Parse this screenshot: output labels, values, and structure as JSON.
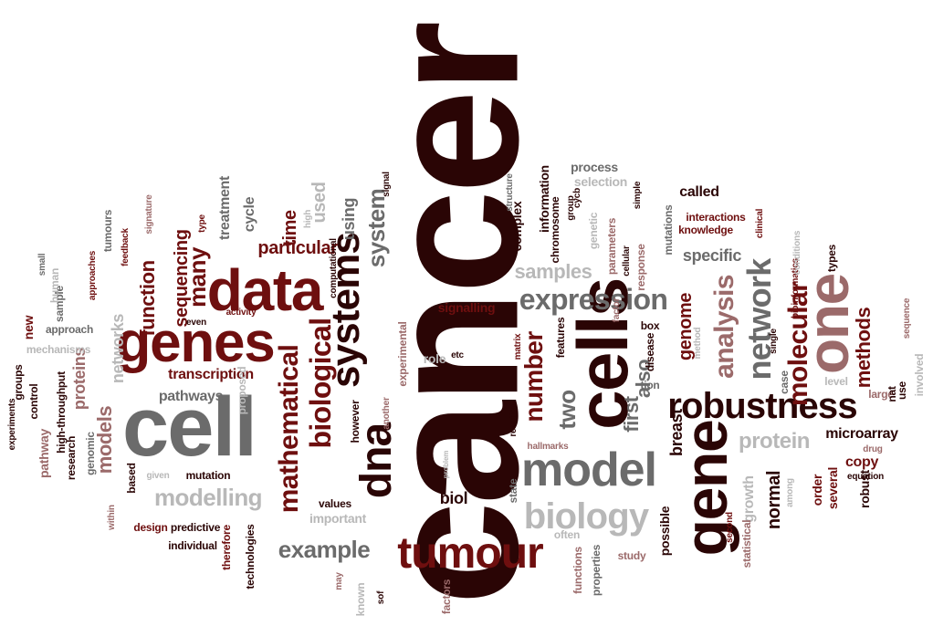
{
  "palette": {
    "darkest": "#2a0505",
    "dark_red": "#6e0f0f",
    "rose": "#9b6a6a",
    "grey": "#6b6b6b",
    "light_grey": "#b8b8b8"
  },
  "words": [
    {
      "text": "cancer",
      "color": "darkest"
    },
    {
      "text": "cell",
      "color": "grey"
    },
    {
      "text": "cells",
      "color": "darkest"
    },
    {
      "text": "data",
      "color": "dark_red"
    },
    {
      "text": "genes",
      "color": "dark_red"
    },
    {
      "text": "one",
      "color": "rose"
    },
    {
      "text": "gene",
      "color": "darkest"
    },
    {
      "text": "model",
      "color": "grey"
    },
    {
      "text": "tumour",
      "color": "dark_red"
    },
    {
      "text": "robustness",
      "color": "darkest"
    },
    {
      "text": "expression",
      "color": "grey"
    },
    {
      "text": "biology",
      "color": "light_grey"
    },
    {
      "text": "dna",
      "color": "darkest"
    },
    {
      "text": "systems",
      "color": "darkest"
    },
    {
      "text": "biological",
      "color": "dark_red"
    },
    {
      "text": "mathematical",
      "color": "dark_red"
    },
    {
      "text": "example",
      "color": "grey"
    },
    {
      "text": "network",
      "color": "grey"
    },
    {
      "text": "molecular",
      "color": "dark_red"
    },
    {
      "text": "analysis",
      "color": "rose"
    },
    {
      "text": "methods",
      "color": "dark_red"
    },
    {
      "text": "modelling",
      "color": "light_grey"
    },
    {
      "text": "models",
      "color": "rose"
    },
    {
      "text": "many",
      "color": "dark_red"
    },
    {
      "text": "protein",
      "color": "light_grey"
    },
    {
      "text": "two",
      "color": "grey"
    },
    {
      "text": "number",
      "color": "dark_red"
    },
    {
      "text": "normal",
      "color": "darkest"
    },
    {
      "text": "genome",
      "color": "dark_red"
    },
    {
      "text": "system",
      "color": "grey"
    },
    {
      "text": "function",
      "color": "dark_red"
    },
    {
      "text": "sequencing",
      "color": "dark_red"
    },
    {
      "text": "time",
      "color": "dark_red"
    },
    {
      "text": "particular",
      "color": "dark_red"
    },
    {
      "text": "samples",
      "color": "light_grey"
    },
    {
      "text": "also",
      "color": "grey"
    },
    {
      "text": "first",
      "color": "grey"
    },
    {
      "text": "specific",
      "color": "grey"
    },
    {
      "text": "breast",
      "color": "darkest"
    },
    {
      "text": "transcription",
      "color": "dark_red"
    },
    {
      "text": "pathways",
      "color": "grey"
    },
    {
      "text": "networks",
      "color": "light_grey"
    },
    {
      "text": "proteins",
      "color": "rose"
    },
    {
      "text": "using",
      "color": "grey"
    },
    {
      "text": "used",
      "color": "light_grey"
    },
    {
      "text": "treatment",
      "color": "grey"
    },
    {
      "text": "cycle",
      "color": "grey"
    },
    {
      "text": "microarray",
      "color": "darkest"
    },
    {
      "text": "copy",
      "color": "dark_red"
    },
    {
      "text": "called",
      "color": "darkest"
    },
    {
      "text": "biol",
      "color": "darkest"
    },
    {
      "text": "growth",
      "color": "light_grey"
    },
    {
      "text": "order",
      "color": "dark_red"
    },
    {
      "text": "several",
      "color": "dark_red"
    },
    {
      "text": "robust",
      "color": "darkest"
    },
    {
      "text": "case",
      "color": "grey"
    },
    {
      "text": "signalling",
      "color": "dark_red"
    },
    {
      "text": "process",
      "color": "grey"
    },
    {
      "text": "selection",
      "color": "light_grey"
    },
    {
      "text": "complex",
      "color": "darkest"
    },
    {
      "text": "information",
      "color": "darkest"
    },
    {
      "text": "important",
      "color": "light_grey"
    },
    {
      "text": "values",
      "color": "darkest"
    },
    {
      "text": "mutation",
      "color": "darkest"
    },
    {
      "text": "predictive",
      "color": "darkest"
    },
    {
      "text": "design",
      "color": "dark_red"
    },
    {
      "text": "individual",
      "color": "darkest"
    },
    {
      "text": "therefore",
      "color": "dark_red"
    },
    {
      "text": "technologies",
      "color": "darkest"
    },
    {
      "text": "genomic",
      "color": "grey"
    },
    {
      "text": "within",
      "color": "rose"
    },
    {
      "text": "based",
      "color": "darkest"
    },
    {
      "text": "given",
      "color": "light_grey"
    },
    {
      "text": "pathway",
      "color": "rose"
    },
    {
      "text": "control",
      "color": "darkest"
    },
    {
      "text": "high-throughput",
      "color": "darkest"
    },
    {
      "text": "research",
      "color": "darkest"
    },
    {
      "text": "experiments",
      "color": "darkest"
    },
    {
      "text": "groups",
      "color": "darkest"
    },
    {
      "text": "new",
      "color": "dark_red"
    },
    {
      "text": "approach",
      "color": "grey"
    },
    {
      "text": "mechanisms",
      "color": "light_grey"
    },
    {
      "text": "sample",
      "color": "grey"
    },
    {
      "text": "human",
      "color": "light_grey"
    },
    {
      "text": "small",
      "color": "grey"
    },
    {
      "text": "approaches",
      "color": "dark_red"
    },
    {
      "text": "feedback",
      "color": "dark_red"
    },
    {
      "text": "tumours",
      "color": "grey"
    },
    {
      "text": "signature",
      "color": "rose"
    },
    {
      "text": "type",
      "color": "dark_red"
    },
    {
      "text": "even",
      "color": "darkest"
    },
    {
      "text": "activity",
      "color": "dark_red"
    },
    {
      "text": "proposed",
      "color": "light_grey"
    },
    {
      "text": "high",
      "color": "light_grey"
    },
    {
      "text": "computational",
      "color": "darkest"
    },
    {
      "text": "experimental",
      "color": "rose"
    },
    {
      "text": "however",
      "color": "darkest"
    },
    {
      "text": "signal",
      "color": "darkest"
    },
    {
      "text": "role",
      "color": "light_grey"
    },
    {
      "text": "etc",
      "color": "darkest"
    },
    {
      "text": "another",
      "color": "rose"
    },
    {
      "text": "problem",
      "color": "light_grey"
    },
    {
      "text": "reaction",
      "color": "darkest"
    },
    {
      "text": "matrix",
      "color": "dark_red"
    },
    {
      "text": "state",
      "color": "grey"
    },
    {
      "text": "structure",
      "color": "grey"
    },
    {
      "text": "hallmarks",
      "color": "rose"
    },
    {
      "text": "features",
      "color": "darkest"
    },
    {
      "text": "chromosome",
      "color": "darkest"
    },
    {
      "text": "group",
      "color": "darkest"
    },
    {
      "text": "cycb",
      "color": "darkest"
    },
    {
      "text": "genetic",
      "color": "light_grey"
    },
    {
      "text": "parameters",
      "color": "rose"
    },
    {
      "text": "response",
      "color": "rose"
    },
    {
      "text": "factor",
      "color": "rose"
    },
    {
      "text": "cellular",
      "color": "darkest"
    },
    {
      "text": "simple",
      "color": "darkest"
    },
    {
      "text": "mutations",
      "color": "grey"
    },
    {
      "text": "interactions",
      "color": "dark_red"
    },
    {
      "text": "knowledge",
      "color": "dark_red"
    },
    {
      "text": "clinical",
      "color": "dark_red"
    },
    {
      "text": "box",
      "color": "darkest"
    },
    {
      "text": "disease",
      "color": "darkest"
    },
    {
      "text": "tion",
      "color": "grey"
    },
    {
      "text": "possible",
      "color": "darkest"
    },
    {
      "text": "often",
      "color": "light_grey"
    },
    {
      "text": "functions",
      "color": "rose"
    },
    {
      "text": "properties",
      "color": "grey"
    },
    {
      "text": "study",
      "color": "rose"
    },
    {
      "text": "factors",
      "color": "rose"
    },
    {
      "text": "sof",
      "color": "darkest"
    },
    {
      "text": "known",
      "color": "light_grey"
    },
    {
      "text": "may",
      "color": "rose"
    },
    {
      "text": "method",
      "color": "light_grey"
    },
    {
      "text": "second",
      "color": "dark_red"
    },
    {
      "text": "statistical",
      "color": "rose"
    },
    {
      "text": "single",
      "color": "darkest"
    },
    {
      "text": "among",
      "color": "light_grey"
    },
    {
      "text": "bioinformatics",
      "color": "dark_red"
    },
    {
      "text": "conditions",
      "color": "light_grey"
    },
    {
      "text": "types",
      "color": "darkest"
    },
    {
      "text": "level",
      "color": "light_grey"
    },
    {
      "text": "large",
      "color": "rose"
    },
    {
      "text": "nat",
      "color": "darkest"
    },
    {
      "text": "use",
      "color": "darkest"
    },
    {
      "text": "sequence",
      "color": "rose"
    },
    {
      "text": "involved",
      "color": "light_grey"
    },
    {
      "text": "drug",
      "color": "rose"
    },
    {
      "text": "equation",
      "color": "darkest"
    },
    {
      "text": "targets",
      "color": "dark_red"
    }
  ]
}
